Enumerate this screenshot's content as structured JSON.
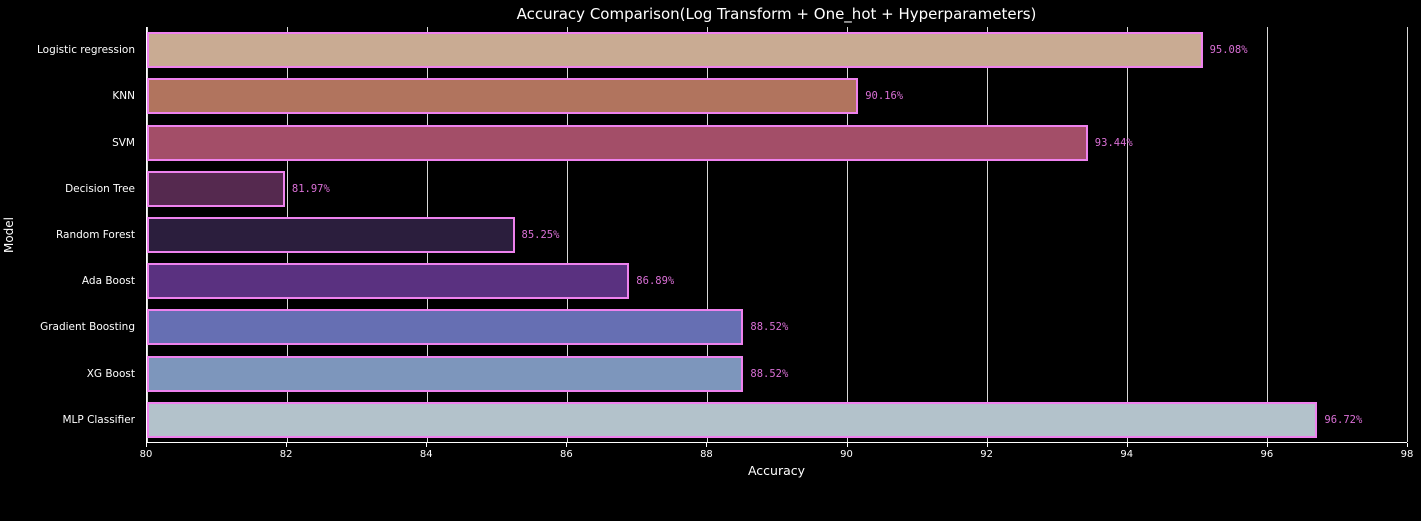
{
  "chart_data": {
    "type": "bar",
    "orientation": "horizontal",
    "title": "Accuracy Comparison(Log Transform + One_hot + Hyperparameters)",
    "xlabel": "Accuracy",
    "ylabel": "Model",
    "xlim": [
      80,
      98
    ],
    "xticks": [
      80,
      82,
      84,
      86,
      88,
      90,
      92,
      94,
      96,
      98
    ],
    "grid": true,
    "categories": [
      "Logistic regression",
      "KNN",
      "SVM",
      "Decision Tree",
      "Random Forest",
      "Ada Boost",
      "Gradient Boosting",
      "XG Boost",
      "MLP Classifier"
    ],
    "values": [
      95.08,
      90.16,
      93.44,
      81.97,
      85.25,
      86.89,
      88.52,
      88.52,
      96.72
    ],
    "value_labels": [
      "95.08%",
      "90.16%",
      "93.44%",
      "81.97%",
      "85.25%",
      "86.89%",
      "88.52%",
      "88.52%",
      "96.72%"
    ],
    "bar_colors": [
      "#c9ab93",
      "#b1745e",
      "#a34e68",
      "#55294f",
      "#2b1e3d",
      "#5a3180",
      "#666fb3",
      "#7d96bc",
      "#b3c2cb"
    ],
    "bar_edge_color": "#ee82ee",
    "value_label_color": "#da70d6",
    "background_color": "#000000",
    "text_color": "#ffffff"
  }
}
